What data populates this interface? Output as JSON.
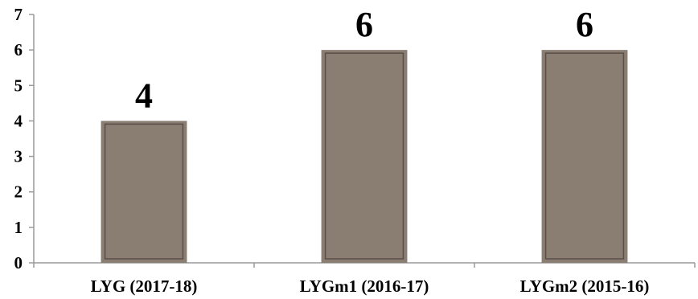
{
  "chart_data": {
    "type": "bar",
    "categories": [
      "LYG (2017-18)",
      "LYGm1 (2016-17)",
      "LYGm2 (2015-16)"
    ],
    "values": [
      4,
      6,
      6
    ],
    "data_labels": [
      "4",
      "6",
      "6"
    ],
    "y_ticks": [
      "0",
      "1",
      "2",
      "3",
      "4",
      "5",
      "6",
      "7"
    ],
    "ylim": [
      0,
      7
    ],
    "title": "",
    "xlabel": "",
    "ylabel": "",
    "grid": false,
    "legend": "none",
    "colors": {
      "bar_fill": "#8a7d72",
      "bar_border": "#5a4f48",
      "axis": "#9a9a9a"
    }
  }
}
